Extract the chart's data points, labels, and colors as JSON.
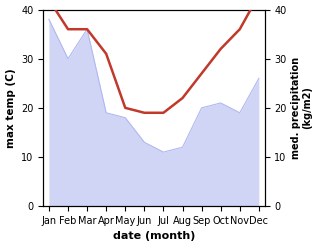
{
  "months": [
    "Jan",
    "Feb",
    "Mar",
    "Apr",
    "May",
    "Jun",
    "Jul",
    "Aug",
    "Sep",
    "Oct",
    "Nov",
    "Dec"
  ],
  "temperature": [
    42,
    36,
    36,
    31,
    20,
    19,
    19,
    22,
    27,
    32,
    36,
    43
  ],
  "precipitation": [
    38,
    30,
    36,
    19,
    18,
    13,
    11,
    12,
    20,
    21,
    19,
    26
  ],
  "temp_color": "#c0392b",
  "precip_fill_color": "#c8cef5",
  "precip_edge_color": "#b0b8f0",
  "ylabel_left": "max temp (C)",
  "ylabel_right": "med. precipitation\n(kg/m2)",
  "xlabel": "date (month)",
  "ylim": [
    0,
    40
  ],
  "yticks": [
    0,
    10,
    20,
    30,
    40
  ],
  "figsize": [
    3.18,
    2.47
  ],
  "dpi": 100,
  "temp_linewidth": 1.8,
  "precip_linewidth": 0.8
}
